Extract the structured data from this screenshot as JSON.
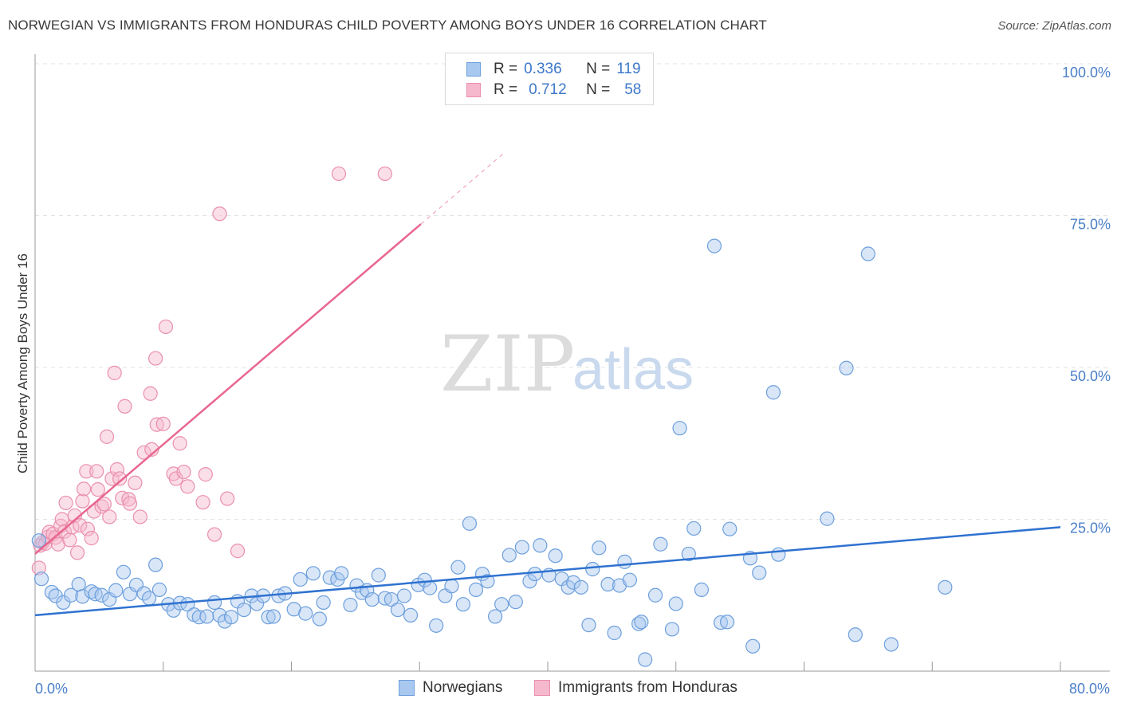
{
  "title": "NORWEGIAN VS IMMIGRANTS FROM HONDURAS CHILD POVERTY AMONG BOYS UNDER 16 CORRELATION CHART",
  "source": "Source: ZipAtlas.com",
  "watermark": {
    "zip": "ZIP",
    "atlas": "atlas"
  },
  "colors": {
    "blue_fill": "#a8c8f0",
    "blue_stroke": "#6d9fdc",
    "blue_line": "#2f72d0",
    "pink_fill": "#f6b8cc",
    "pink_stroke": "#ea8fae",
    "pink_line": "#e8668f",
    "tick_text": "#4a7fc8",
    "grid": "#e3e3e3"
  },
  "legend": {
    "rows": [
      {
        "r_label": "R =",
        "r_value": "0.336",
        "n_label": "N =",
        "n_value": "119"
      },
      {
        "r_label": "R =",
        "r_value": "0.712",
        "n_label": "N =",
        "n_value": "58"
      }
    ]
  },
  "bottom_legend": {
    "series1": "Norwegians",
    "series2": "Immigrants from Honduras"
  },
  "chart_data": {
    "type": "scatter",
    "title": "NORWEGIAN VS IMMIGRANTS FROM HONDURAS CHILD POVERTY AMONG BOYS UNDER 16 CORRELATION CHART",
    "xlabel": "",
    "ylabel": "Child Poverty Among Boys Under 16",
    "xlim": [
      0,
      80
    ],
    "ylim": [
      0,
      100
    ],
    "x_tick_labels": [
      "0.0%",
      "80.0%"
    ],
    "y_ticks": [
      25,
      50,
      75,
      100
    ],
    "y_tick_labels": [
      "25.0%",
      "50.0%",
      "75.0%",
      "100.0%"
    ],
    "grid": true,
    "legend_position": "top-center",
    "series": [
      {
        "name": "Norwegians",
        "color": "#a8c8f0",
        "trend": {
          "x": [
            0,
            80
          ],
          "y": [
            9.2,
            23.7
          ]
        },
        "points": [
          [
            0.3,
            21.5
          ],
          [
            0.5,
            15.2
          ],
          [
            1.3,
            13.0
          ],
          [
            1.6,
            12.4
          ],
          [
            2.2,
            11.3
          ],
          [
            2.8,
            12.5
          ],
          [
            3.4,
            14.3
          ],
          [
            3.7,
            12.3
          ],
          [
            4.4,
            13.1
          ],
          [
            4.7,
            12.7
          ],
          [
            5.2,
            12.5
          ],
          [
            5.8,
            11.8
          ],
          [
            6.3,
            13.3
          ],
          [
            6.9,
            16.3
          ],
          [
            7.4,
            12.7
          ],
          [
            7.9,
            14.2
          ],
          [
            8.5,
            12.8
          ],
          [
            8.9,
            12.0
          ],
          [
            9.4,
            17.5
          ],
          [
            9.7,
            13.4
          ],
          [
            10.4,
            11.0
          ],
          [
            10.8,
            10.0
          ],
          [
            11.3,
            11.2
          ],
          [
            11.9,
            11.0
          ],
          [
            12.4,
            9.3
          ],
          [
            12.8,
            8.9
          ],
          [
            13.4,
            9.0
          ],
          [
            14.0,
            11.3
          ],
          [
            14.4,
            9.2
          ],
          [
            14.8,
            8.2
          ],
          [
            15.3,
            8.9
          ],
          [
            15.8,
            11.5
          ],
          [
            16.3,
            10.1
          ],
          [
            16.9,
            12.4
          ],
          [
            17.3,
            11.1
          ],
          [
            17.8,
            12.4
          ],
          [
            18.2,
            8.9
          ],
          [
            18.6,
            9.0
          ],
          [
            19.0,
            12.4
          ],
          [
            19.5,
            12.8
          ],
          [
            20.2,
            10.2
          ],
          [
            20.7,
            15.1
          ],
          [
            21.1,
            9.5
          ],
          [
            21.7,
            16.1
          ],
          [
            22.2,
            8.6
          ],
          [
            22.5,
            11.3
          ],
          [
            23.0,
            15.4
          ],
          [
            23.6,
            15.1
          ],
          [
            23.9,
            16.1
          ],
          [
            24.6,
            10.9
          ],
          [
            25.1,
            14.1
          ],
          [
            25.5,
            12.9
          ],
          [
            25.9,
            13.3
          ],
          [
            26.3,
            11.8
          ],
          [
            26.8,
            15.8
          ],
          [
            27.3,
            12.0
          ],
          [
            27.8,
            11.8
          ],
          [
            28.3,
            10.1
          ],
          [
            28.8,
            12.4
          ],
          [
            29.3,
            9.2
          ],
          [
            29.9,
            14.2
          ],
          [
            30.4,
            15.0
          ],
          [
            30.8,
            13.7
          ],
          [
            31.3,
            7.5
          ],
          [
            32.0,
            12.4
          ],
          [
            32.5,
            14.0
          ],
          [
            33.0,
            17.1
          ],
          [
            33.4,
            11.0
          ],
          [
            33.9,
            24.3
          ],
          [
            34.4,
            13.4
          ],
          [
            34.9,
            16.0
          ],
          [
            35.3,
            14.8
          ],
          [
            35.9,
            9.0
          ],
          [
            36.4,
            11.0
          ],
          [
            37.0,
            19.1
          ],
          [
            37.5,
            11.4
          ],
          [
            38.0,
            20.4
          ],
          [
            38.6,
            14.8
          ],
          [
            39.0,
            16.0
          ],
          [
            39.4,
            20.7
          ],
          [
            40.1,
            15.8
          ],
          [
            40.6,
            19.0
          ],
          [
            41.1,
            15.2
          ],
          [
            41.6,
            13.8
          ],
          [
            42.0,
            14.6
          ],
          [
            42.6,
            13.8
          ],
          [
            43.2,
            7.6
          ],
          [
            43.5,
            16.8
          ],
          [
            44.0,
            20.3
          ],
          [
            44.7,
            14.3
          ],
          [
            45.2,
            6.3
          ],
          [
            45.6,
            14.1
          ],
          [
            46.0,
            18.0
          ],
          [
            46.4,
            15.0
          ],
          [
            47.1,
            7.8
          ],
          [
            47.3,
            8.1
          ],
          [
            47.6,
            1.9
          ],
          [
            48.4,
            12.5
          ],
          [
            48.8,
            20.9
          ],
          [
            49.7,
            6.9
          ],
          [
            50.0,
            11.1
          ],
          [
            50.3,
            40.0
          ],
          [
            51.0,
            19.3
          ],
          [
            51.4,
            23.5
          ],
          [
            52.0,
            13.4
          ],
          [
            53.0,
            70.0
          ],
          [
            53.5,
            8.0
          ],
          [
            54.0,
            8.1
          ],
          [
            54.2,
            23.4
          ],
          [
            55.8,
            18.6
          ],
          [
            56.0,
            4.1
          ],
          [
            56.5,
            16.2
          ],
          [
            57.6,
            45.9
          ],
          [
            58.0,
            19.2
          ],
          [
            61.8,
            25.1
          ],
          [
            63.3,
            49.9
          ],
          [
            64.0,
            6.0
          ],
          [
            65.0,
            68.7
          ],
          [
            66.8,
            4.4
          ],
          [
            71.0,
            13.8
          ]
        ]
      },
      {
        "name": "Immigrants from Honduras",
        "color": "#f6b8cc",
        "trend": {
          "x": [
            0,
            30.1
          ],
          "y": [
            19.3,
            73.6
          ]
        },
        "points": [
          [
            0.3,
            17.0
          ],
          [
            0.4,
            20.7
          ],
          [
            0.6,
            21.2
          ],
          [
            0.8,
            21.0
          ],
          [
            1.0,
            22.1
          ],
          [
            1.1,
            22.9
          ],
          [
            1.4,
            22.6
          ],
          [
            1.6,
            22.0
          ],
          [
            1.8,
            20.9
          ],
          [
            2.0,
            23.9
          ],
          [
            2.1,
            25.0
          ],
          [
            2.3,
            23.0
          ],
          [
            2.4,
            27.7
          ],
          [
            2.7,
            21.6
          ],
          [
            2.9,
            23.7
          ],
          [
            3.1,
            25.6
          ],
          [
            3.3,
            19.5
          ],
          [
            3.5,
            24.0
          ],
          [
            3.7,
            28.0
          ],
          [
            3.8,
            30.0
          ],
          [
            4.0,
            32.9
          ],
          [
            4.1,
            23.4
          ],
          [
            4.4,
            21.9
          ],
          [
            4.6,
            26.3
          ],
          [
            4.8,
            32.9
          ],
          [
            4.9,
            29.9
          ],
          [
            5.2,
            27.1
          ],
          [
            5.4,
            27.5
          ],
          [
            5.6,
            38.6
          ],
          [
            5.8,
            25.4
          ],
          [
            6.0,
            31.7
          ],
          [
            6.2,
            49.1
          ],
          [
            6.4,
            33.2
          ],
          [
            6.6,
            31.7
          ],
          [
            6.8,
            28.5
          ],
          [
            7.0,
            43.6
          ],
          [
            7.3,
            28.3
          ],
          [
            7.4,
            27.6
          ],
          [
            7.8,
            31.0
          ],
          [
            8.2,
            25.4
          ],
          [
            8.5,
            36.0
          ],
          [
            9.0,
            45.7
          ],
          [
            9.1,
            36.5
          ],
          [
            9.4,
            51.5
          ],
          [
            9.5,
            40.6
          ],
          [
            10.0,
            40.7
          ],
          [
            10.2,
            56.7
          ],
          [
            10.8,
            32.5
          ],
          [
            11.0,
            31.7
          ],
          [
            11.3,
            37.5
          ],
          [
            11.6,
            32.8
          ],
          [
            11.9,
            30.4
          ],
          [
            13.1,
            27.8
          ],
          [
            13.3,
            32.4
          ],
          [
            14.0,
            22.5
          ],
          [
            14.4,
            75.3
          ],
          [
            15.0,
            28.4
          ],
          [
            15.8,
            19.8
          ],
          [
            23.7,
            81.9
          ],
          [
            27.3,
            81.9
          ]
        ]
      }
    ]
  }
}
